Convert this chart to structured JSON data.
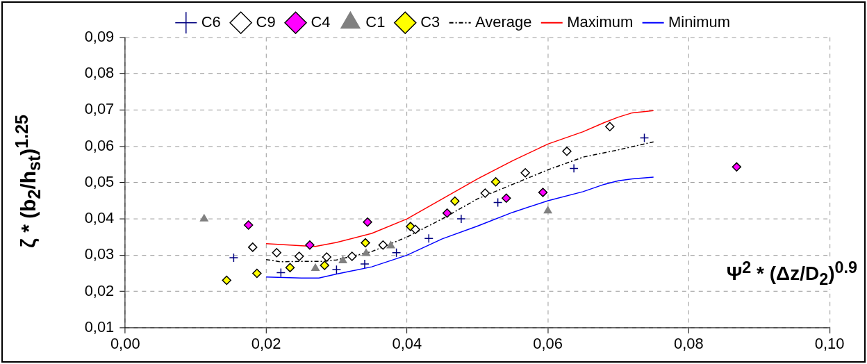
{
  "chart_data": {
    "type": "scatter",
    "xlabel": "Ψ$^{2}$ * (Δz/D$_{2}$)$^{0.9}$",
    "ylabel": "ζ * (b$_{2}$/h$_{st}$)$^{1.25}$",
    "xlim": [
      0,
      0.1
    ],
    "xticks": [
      {
        "value": 0,
        "label": "0,00"
      },
      {
        "value": 0.02,
        "label": "0,02"
      },
      {
        "value": 0.04,
        "label": "0,04"
      },
      {
        "value": 0.06,
        "label": "0,06"
      },
      {
        "value": 0.08,
        "label": "0,08"
      },
      {
        "value": 0.1,
        "label": "0,10"
      }
    ],
    "ylim": [
      0.01,
      0.09
    ],
    "yticks": [
      {
        "value": 0.01,
        "label": "0,01"
      },
      {
        "value": 0.02,
        "label": "0,02"
      },
      {
        "value": 0.03,
        "label": "0,03"
      },
      {
        "value": 0.04,
        "label": "0,04"
      },
      {
        "value": 0.05,
        "label": "0,05"
      },
      {
        "value": 0.06,
        "label": "0,06"
      },
      {
        "value": 0.07,
        "label": "0,07"
      },
      {
        "value": 0.08,
        "label": "0,08"
      },
      {
        "value": 0.09,
        "label": "0,09"
      }
    ],
    "grid": true,
    "legend": "top",
    "series": [
      {
        "name": "C6",
        "marker": "cross",
        "color": "#000080",
        "x": [
          0.0154,
          0.0221,
          0.03,
          0.034,
          0.0385,
          0.0431,
          0.0477,
          0.0529,
          0.0637,
          0.0737
        ],
        "values": [
          0.0293,
          0.0252,
          0.026,
          0.0276,
          0.0307,
          0.0346,
          0.04,
          0.0445,
          0.0539,
          0.0623
        ]
      },
      {
        "name": "C9",
        "marker": "diamond",
        "color": "#ffffff",
        "x": [
          0.0181,
          0.0215,
          0.0247,
          0.0286,
          0.0322,
          0.0366,
          0.0412,
          0.0511,
          0.0568,
          0.0627,
          0.0688
        ],
        "values": [
          0.0322,
          0.0307,
          0.0297,
          0.0295,
          0.0297,
          0.0328,
          0.0371,
          0.0471,
          0.0527,
          0.0586,
          0.0654
        ]
      },
      {
        "name": "C4",
        "marker": "diamond",
        "color": "#ff00ff",
        "x": [
          0.0175,
          0.0262,
          0.0344,
          0.0457,
          0.0541,
          0.0593,
          0.0868
        ],
        "values": [
          0.0383,
          0.0328,
          0.0391,
          0.0416,
          0.0457,
          0.0473,
          0.0543
        ]
      },
      {
        "name": "C1",
        "marker": "triangle",
        "color": "#808080",
        "x": [
          0.0112,
          0.027,
          0.0309,
          0.0342,
          0.0377,
          0.06
        ],
        "values": [
          0.04,
          0.0264,
          0.0285,
          0.0305,
          0.0326,
          0.0422
        ]
      },
      {
        "name": "C3",
        "marker": "diamond",
        "color": "#ffff00",
        "x": [
          0.0144,
          0.0187,
          0.0234,
          0.0283,
          0.0341,
          0.0405,
          0.0468,
          0.0526
        ],
        "values": [
          0.0231,
          0.025,
          0.0266,
          0.0272,
          0.0334,
          0.0379,
          0.0449,
          0.0502
        ]
      },
      {
        "name": "Average",
        "type": "line",
        "marker": "none",
        "line_style": "dashed",
        "color": "#000000",
        "x": [
          0.02,
          0.022,
          0.025,
          0.028,
          0.03,
          0.035,
          0.04,
          0.045,
          0.05,
          0.055,
          0.06,
          0.065,
          0.07,
          0.075
        ],
        "values": [
          0.0288,
          0.0282,
          0.0283,
          0.0283,
          0.0287,
          0.031,
          0.035,
          0.04,
          0.0455,
          0.0495,
          0.0535,
          0.057,
          0.059,
          0.0612
        ]
      },
      {
        "name": "Maximum",
        "type": "line",
        "marker": "none",
        "line_style": "solid",
        "color": "#ff0000",
        "x": [
          0.02,
          0.025,
          0.027,
          0.03,
          0.035,
          0.04,
          0.045,
          0.05,
          0.055,
          0.06,
          0.065,
          0.068,
          0.07,
          0.072,
          0.075
        ],
        "values": [
          0.0332,
          0.0326,
          0.0324,
          0.0335,
          0.036,
          0.04,
          0.0455,
          0.051,
          0.056,
          0.0606,
          0.064,
          0.0665,
          0.068,
          0.0692,
          0.0698
        ]
      },
      {
        "name": "Minimum",
        "type": "line",
        "marker": "none",
        "line_style": "solid",
        "color": "#0000ff",
        "x": [
          0.02,
          0.025,
          0.0275,
          0.03,
          0.035,
          0.04,
          0.045,
          0.05,
          0.055,
          0.06,
          0.065,
          0.068,
          0.07,
          0.072,
          0.075
        ],
        "values": [
          0.024,
          0.0237,
          0.0237,
          0.0248,
          0.0268,
          0.03,
          0.0345,
          0.038,
          0.0418,
          0.045,
          0.0475,
          0.0495,
          0.0505,
          0.051,
          0.0515
        ]
      }
    ]
  }
}
